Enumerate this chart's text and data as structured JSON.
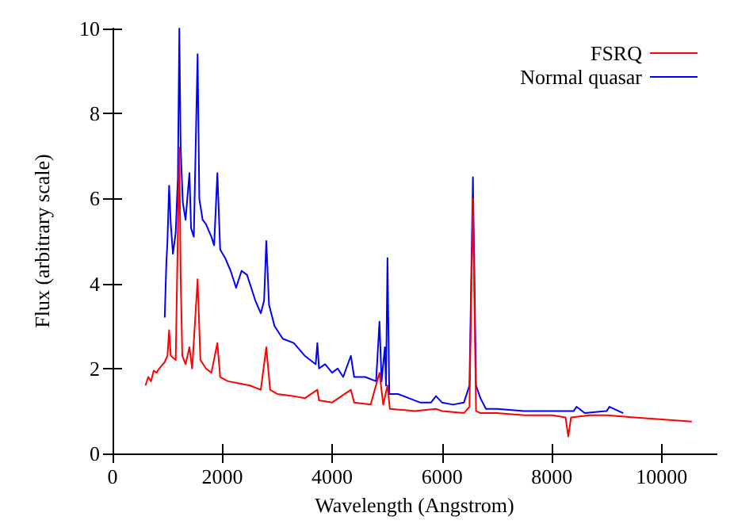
{
  "chart_data": {
    "type": "line",
    "xlabel": "Wavelength (Angstrom)",
    "ylabel": "Flux (arbitrary scale)",
    "xlim": [
      0,
      11000
    ],
    "xticks": [
      0,
      2000,
      4000,
      6000,
      8000,
      10000
    ],
    "ylim": [
      0,
      10
    ],
    "yticks": [
      0,
      2,
      4,
      6,
      8,
      10
    ],
    "grid": false,
    "legend": "top right",
    "marker": "none",
    "line_style": "solid",
    "series": [
      {
        "name": "FSRQ",
        "color": "#ff0000",
        "x": [
          600,
          650,
          700,
          750,
          800,
          850,
          950,
          1000,
          1030,
          1060,
          1150,
          1216,
          1240,
          1270,
          1330,
          1400,
          1450,
          1549,
          1600,
          1700,
          1800,
          1909,
          1960,
          2100,
          2300,
          2500,
          2700,
          2800,
          2870,
          3000,
          3300,
          3500,
          3730,
          3760,
          4000,
          4340,
          4400,
          4700,
          4861,
          4930,
          5007,
          5050,
          5500,
          5890,
          6000,
          6400,
          6500,
          6563,
          6620,
          6700,
          7000,
          7500,
          8000,
          8250,
          8300,
          8350,
          8700,
          9000,
          9500,
          10000,
          10550
        ],
        "values": [
          1.6,
          1.8,
          1.7,
          1.95,
          1.9,
          2.0,
          2.15,
          2.3,
          2.9,
          2.3,
          2.2,
          7.2,
          4.2,
          2.3,
          2.1,
          2.5,
          2.0,
          4.1,
          2.2,
          2.0,
          1.9,
          2.6,
          1.8,
          1.7,
          1.65,
          1.6,
          1.5,
          2.5,
          1.5,
          1.4,
          1.35,
          1.3,
          1.5,
          1.25,
          1.2,
          1.5,
          1.2,
          1.15,
          1.9,
          1.15,
          1.6,
          1.05,
          1.0,
          1.05,
          1.0,
          0.95,
          1.1,
          6.0,
          1.0,
          0.95,
          0.95,
          0.9,
          0.9,
          0.85,
          0.4,
          0.85,
          0.9,
          0.9,
          0.85,
          0.8,
          0.75
        ]
      },
      {
        "name": "Normal quasar",
        "color": "#0000ff",
        "x": [
          950,
          980,
          1000,
          1030,
          1060,
          1100,
          1150,
          1190,
          1216,
          1240,
          1280,
          1330,
          1400,
          1430,
          1480,
          1549,
          1580,
          1640,
          1700,
          1800,
          1850,
          1909,
          1960,
          2050,
          2150,
          2250,
          2350,
          2450,
          2600,
          2700,
          2760,
          2800,
          2850,
          2950,
          3100,
          3300,
          3500,
          3700,
          3730,
          3760,
          3870,
          4000,
          4100,
          4200,
          4340,
          4400,
          4600,
          4800,
          4861,
          4900,
          4959,
          4980,
          5007,
          5040,
          5200,
          5400,
          5600,
          5800,
          5890,
          6000,
          6200,
          6400,
          6500,
          6563,
          6620,
          6700,
          6800,
          7000,
          7500,
          8000,
          8400,
          8450,
          8600,
          9000,
          9050,
          9300
        ],
        "values": [
          3.2,
          4.5,
          5.0,
          6.3,
          5.4,
          4.7,
          5.2,
          6.5,
          10,
          7.2,
          5.9,
          5.5,
          6.6,
          5.3,
          5.1,
          9.4,
          6.0,
          5.5,
          5.4,
          5.1,
          4.9,
          6.6,
          4.8,
          4.6,
          4.3,
          3.9,
          4.3,
          4.2,
          3.6,
          3.3,
          3.6,
          5.0,
          3.5,
          3.0,
          2.7,
          2.6,
          2.3,
          2.1,
          2.6,
          2.0,
          2.1,
          1.9,
          2.0,
          1.8,
          2.3,
          1.8,
          1.8,
          1.7,
          3.1,
          1.7,
          2.5,
          1.6,
          4.6,
          1.4,
          1.4,
          1.3,
          1.2,
          1.2,
          1.35,
          1.2,
          1.15,
          1.2,
          1.6,
          6.5,
          1.6,
          1.3,
          1.05,
          1.05,
          1.0,
          1.0,
          1.0,
          1.1,
          0.95,
          1.0,
          1.1,
          0.95
        ]
      }
    ]
  }
}
